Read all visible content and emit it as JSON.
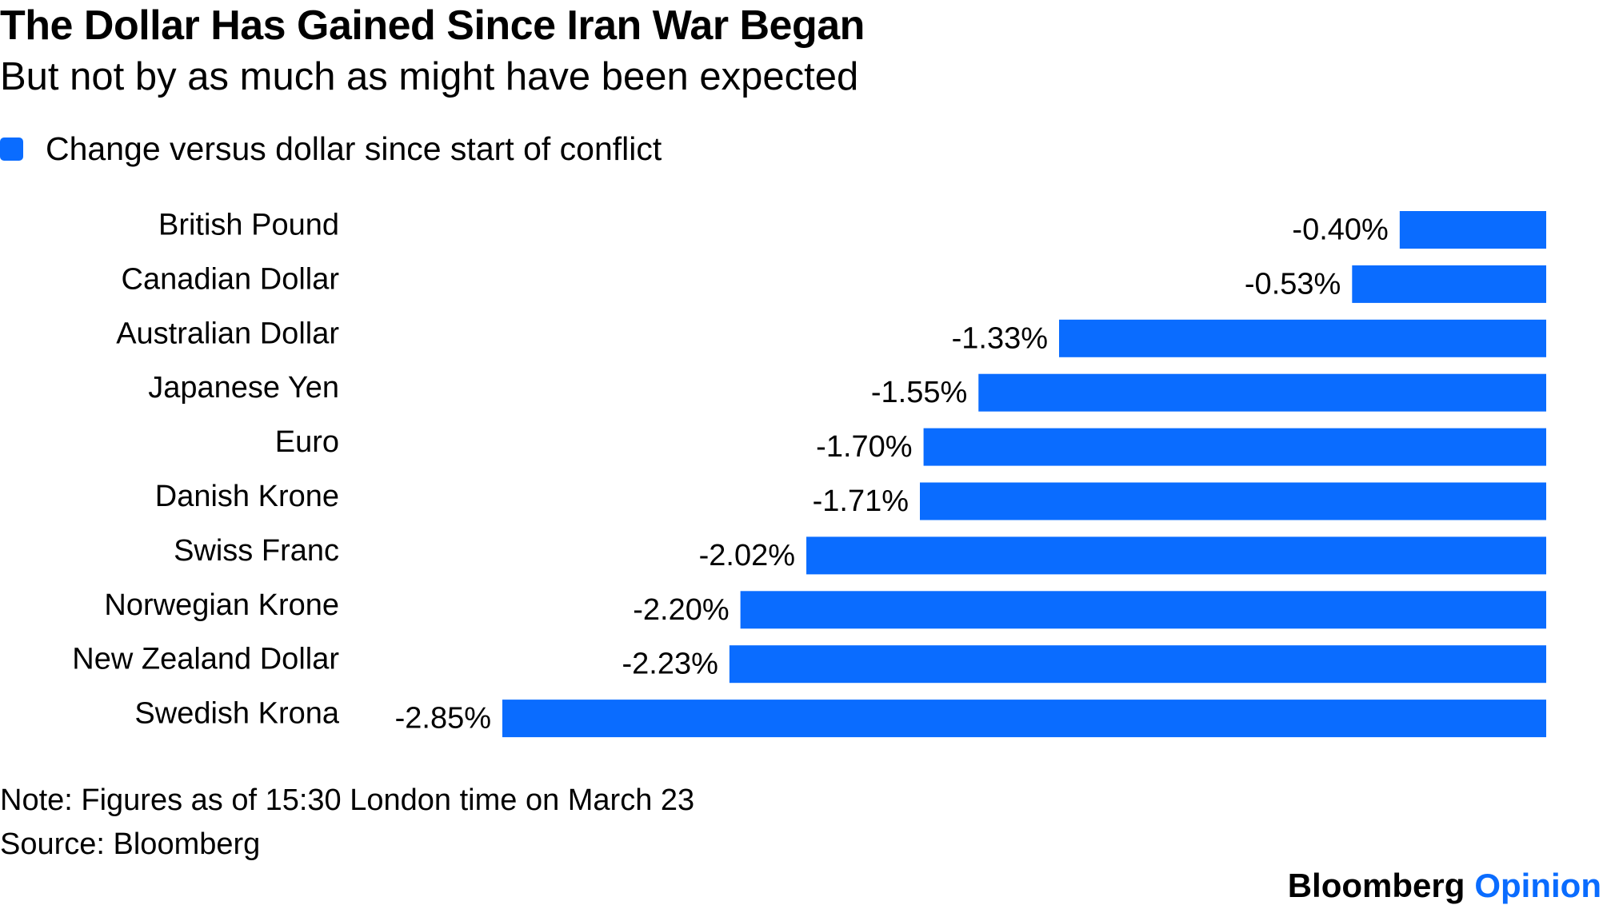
{
  "header": {
    "title": "The Dollar Has Gained Since Iran War Began",
    "subtitle": "But not by as much as might have been expected"
  },
  "colors": {
    "bar": "#0a6cff",
    "brand_accent": "#0a6cff",
    "text": "#000000"
  },
  "chart_data": {
    "type": "bar",
    "orientation": "horizontal",
    "title": "The Dollar Has Gained Since Iran War Began",
    "subtitle": "But not by as much as might have been expected",
    "legend": [
      "Change versus dollar since start of conflict"
    ],
    "legend_position": "top-left",
    "categories": [
      "British Pound",
      "Canadian Dollar",
      "Australian Dollar",
      "Japanese Yen",
      "Euro",
      "Danish Krone",
      "Swiss Franc",
      "Norwegian Krone",
      "New Zealand Dollar",
      "Swedish Krona"
    ],
    "series": [
      {
        "name": "Change versus dollar since start of conflict",
        "values": [
          -0.4,
          -0.53,
          -1.33,
          -1.55,
          -1.7,
          -1.71,
          -2.02,
          -2.2,
          -2.23,
          -2.85
        ],
        "labels": [
          "-0.40%",
          "-0.53%",
          "-1.33%",
          "-1.55%",
          "-1.70%",
          "-1.71%",
          "-2.02%",
          "-2.20%",
          "-2.23%",
          "-2.85%"
        ]
      }
    ],
    "unit": "%",
    "xlim": [
      -2.85,
      0
    ],
    "grid": false
  },
  "footer": {
    "note": "Note: Figures as of 15:30 London time on March 23",
    "source": "Source: Bloomberg",
    "brand_name": "Bloomberg",
    "brand_accent": "Opinion"
  }
}
